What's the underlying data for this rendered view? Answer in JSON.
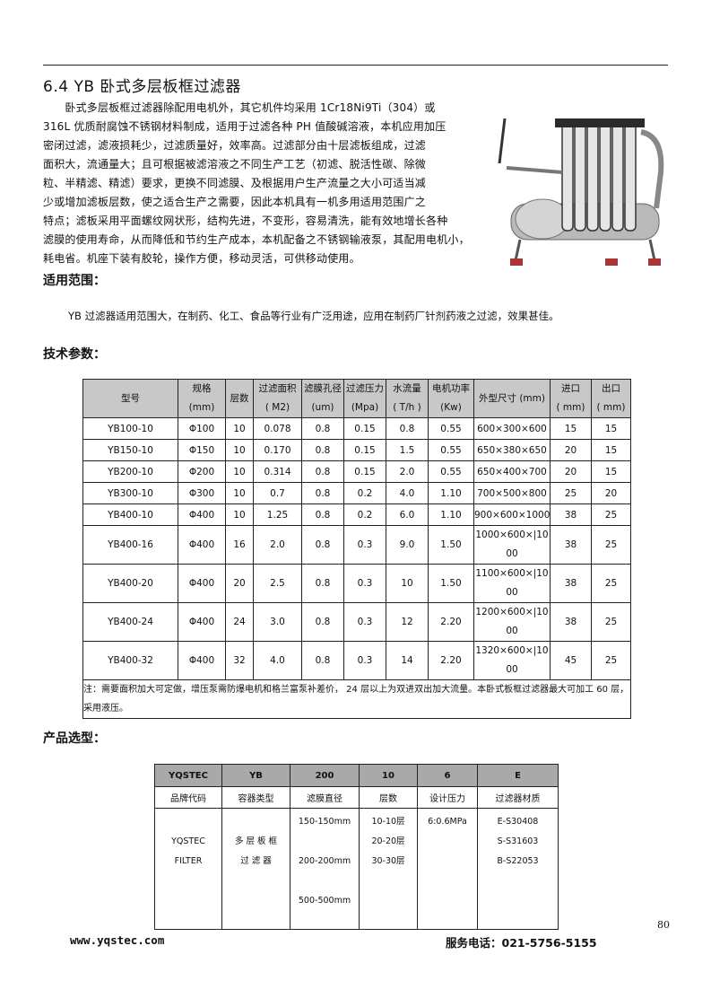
{
  "section_title": "6.4 YB 卧式多层板框过滤器",
  "intro_lines": [
    "　　卧式多层板框过滤器除配用电机外，其它机件均采用 1Cr18Ni9Ti（304）或",
    "316L 优质耐腐蚀不锈钢材料制成，适用于过滤各种 PH 值酸碱溶液，本机应用加压",
    "密闭过滤，滤液损耗少，过滤质量好，效率高。过滤部分由十层滤板组成，过滤",
    "面积大，流通量大；且可根据被滤溶液之不同生产工艺（初滤、脱活性碳、除微",
    "粒、半精滤、精滤）要求，更换不同滤膜、及根据用户生产流量之大小可适当减",
    "少或增加滤板层数，使之适合生产之需要，因此本机具有一机多用适用范围广之",
    "特点；滤板采用平面螺纹网状形，结构先进，不变形，容易清洗，能有效地增长各种",
    "滤膜的使用寿命，从而降低和节约生产成本，本机配备之不锈钢输液泵，其配用电机小，",
    "耗电省。机座下装有胶轮，操作方便，移动灵活，可供移动使用。"
  ],
  "scope_heading": "适用范围：",
  "scope_text": "YB 过滤器适用范围大，在制药、化工、食品等行业有广泛用途，应用在制药厂针剂药液之过滤，效果甚佳。",
  "params_heading": "技术参数：",
  "params_table": {
    "headers": [
      [
        "型号",
        ""
      ],
      [
        "规格",
        "(mm)"
      ],
      [
        "层数",
        ""
      ],
      [
        "过滤面积",
        "( M2)"
      ],
      [
        "滤膜孔径",
        "(um)"
      ],
      [
        "过滤压力",
        "(Mpa)"
      ],
      [
        "水流量",
        "( T/h )"
      ],
      [
        "电机功率",
        "(Kw)"
      ],
      [
        "外型尺寸 (mm)",
        ""
      ],
      [
        "进口",
        "( mm)"
      ],
      [
        "出口",
        "( mm)"
      ]
    ],
    "rows": [
      [
        "YB100-10",
        "Φ100",
        "10",
        "0.078",
        "0.8",
        "0.15",
        "0.8",
        "0.55",
        "600×300×600",
        "15",
        "15"
      ],
      [
        "YB150-10",
        "Φ150",
        "10",
        "0.170",
        "0.8",
        "0.15",
        "1.5",
        "0.55",
        "650×380×650",
        "20",
        "15"
      ],
      [
        "YB200-10",
        "Φ200",
        "10",
        "0.314",
        "0.8",
        "0.15",
        "2.0",
        "0.55",
        "650×400×700",
        "20",
        "15"
      ],
      [
        "YB300-10",
        "Φ300",
        "10",
        "0.7",
        "0.8",
        "0.2",
        "4.0",
        "1.10",
        "700×500×800",
        "25",
        "20"
      ],
      [
        "YB400-10",
        "Φ400",
        "10",
        "1.25",
        "0.8",
        "0.2",
        "6.0",
        "1.10",
        "900×600×1000",
        "38",
        "25"
      ],
      [
        "YB400-16",
        "Φ400",
        "16",
        "2.0",
        "0.8",
        "0.3",
        "9.0",
        "1.50",
        "1000×600×|1000",
        "38",
        "25"
      ],
      [
        "YB400-20",
        "Φ400",
        "20",
        "2.5",
        "0.8",
        "0.3",
        "10",
        "1.50",
        "1100×600×|1000",
        "38",
        "25"
      ],
      [
        "YB400-24",
        "Φ400",
        "24",
        "3.0",
        "0.8",
        "0.3",
        "12",
        "2.20",
        "1200×600×|1000",
        "38",
        "25"
      ],
      [
        "YB400-32",
        "Φ400",
        "32",
        "4.0",
        "0.8",
        "0.3",
        "14",
        "2.20",
        "1320×600×|1000",
        "45",
        "25"
      ]
    ],
    "note": "注：需要面积加大可定做，增压泵需防爆电机和格兰富泵补差价， 24 层以上为双进双出加大流量。本卧式板框过滤器最大可加工 60 层，采用液压。"
  },
  "selection_heading": "产品选型：",
  "selection_table": {
    "codes": [
      "YQSTEC",
      "YB",
      "200",
      "10",
      "6",
      "E"
    ],
    "labels": [
      "品牌代码",
      "容器类型",
      "滤膜直径",
      "层数",
      "设计压力",
      "过滤器材质"
    ],
    "details": [
      [
        "YQSTEC",
        "FILTER"
      ],
      [
        "多 层 板 框",
        "过 滤 器"
      ],
      [
        "150-150mm",
        "",
        "200-200mm",
        "",
        "500-500mm"
      ],
      [
        "10-10层",
        "20-20层",
        "30-30层"
      ],
      [
        "6:0.6MPa"
      ],
      [
        "E-S30408",
        "S-S31603",
        "B-S22053"
      ]
    ]
  },
  "page_number": "80",
  "footer": {
    "website": "www.yqstec.com",
    "phone": "服务电话：021-5756-5155"
  },
  "photo_icon": "stainless-steel-plate-frame-filter-photo"
}
